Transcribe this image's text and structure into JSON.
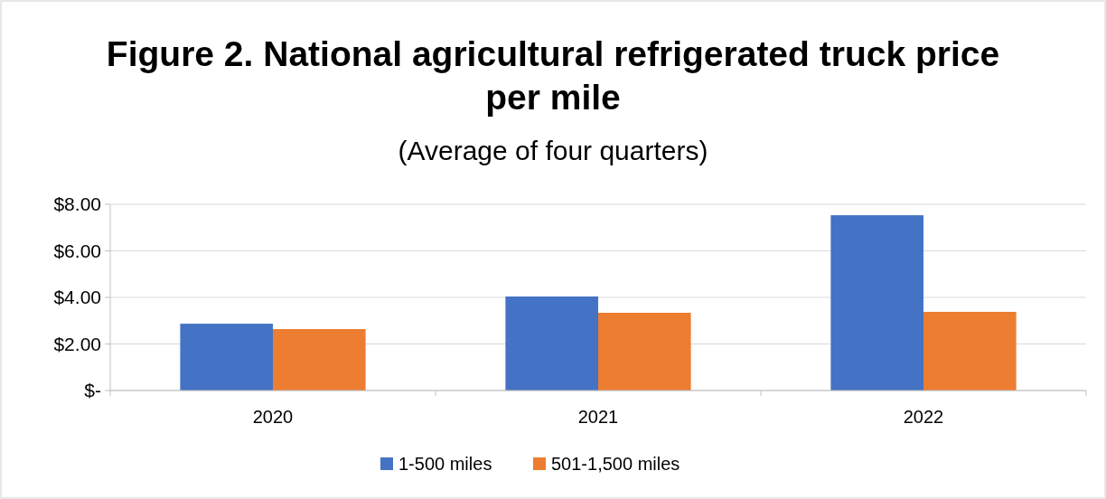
{
  "chart_data": {
    "type": "bar",
    "title": "Figure 2. National agricultural refrigerated truck price per mile",
    "subtitle": "(Average of four quarters)",
    "categories": [
      "2020",
      "2021",
      "2022"
    ],
    "series": [
      {
        "name": "1-500 miles",
        "color": "#4472c4",
        "values": [
          2.87,
          4.04,
          7.53
        ]
      },
      {
        "name": "501-1,500 miles",
        "color": "#ed7d31",
        "values": [
          2.64,
          3.34,
          3.38
        ]
      }
    ],
    "ylim": [
      0,
      8
    ],
    "yticks": [
      {
        "value": 0,
        "label": "$-"
      },
      {
        "value": 2,
        "label": "$2.00"
      },
      {
        "value": 4,
        "label": "$4.00"
      },
      {
        "value": 6,
        "label": "$6.00"
      },
      {
        "value": 8,
        "label": "$8.00"
      }
    ],
    "grid": "y",
    "legend": "bottom"
  }
}
